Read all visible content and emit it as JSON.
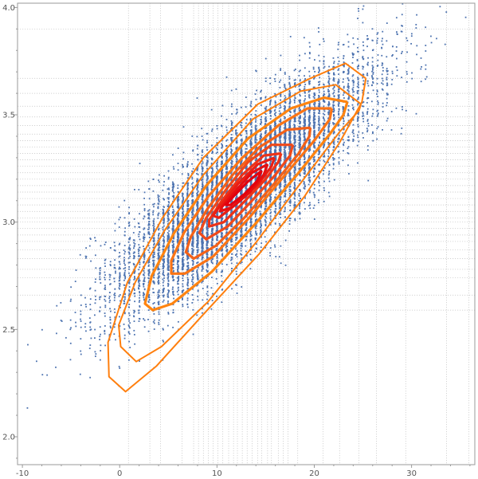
{
  "chart_data": {
    "type": "scatter",
    "title": "",
    "xlabel": "",
    "ylabel": "",
    "xlim": [
      -10.5,
      36.5
    ],
    "ylim": [
      1.87,
      4.02
    ],
    "x_ticks": [
      -10,
      0,
      10,
      20,
      30
    ],
    "y_ticks": [
      2.0,
      2.5,
      3.0,
      3.5,
      4.0
    ],
    "x_tick_labels": [
      "-10",
      "0",
      "10",
      "20",
      "30"
    ],
    "y_tick_labels": [
      "2.0",
      "2.5",
      "3.0",
      "3.5",
      "4.0"
    ],
    "grid": true,
    "x_grid_values": [
      0.9,
      3.1,
      4.2,
      6.4,
      7.6,
      8.1,
      8.6,
      9.1,
      9.6,
      10.1,
      10.6,
      11.2,
      11.7,
      12.1,
      12.6,
      13.1,
      13.6,
      14.2,
      14.6,
      15.2,
      15.6,
      16.3,
      16.8,
      17.3,
      18.3,
      20.9,
      22.6,
      24.6,
      26.4,
      29.4,
      33.6,
      35.9
    ],
    "y_grid_values": [
      2.59,
      2.66,
      2.74,
      2.78,
      2.83,
      2.87,
      2.91,
      2.94,
      2.97,
      3.0,
      3.02,
      3.05,
      3.08,
      3.11,
      3.14,
      3.17,
      3.2,
      3.23,
      3.26,
      3.29,
      3.32,
      3.35,
      3.38,
      3.41,
      3.45,
      3.49,
      3.54,
      3.6,
      3.67,
      3.9
    ],
    "scatter_distribution": {
      "count": 9000,
      "x_mean": 12.5,
      "x_sd": 6.3,
      "y_mean": 3.16,
      "y_sd": 0.27,
      "correlation": 0.84,
      "x_quantization": 0.5,
      "color": "#4d73b0"
    },
    "contours": [
      {
        "color": "#ff7f0e",
        "points": [
          [
            25.3,
            3.67
          ],
          [
            23.2,
            3.74
          ],
          [
            19.6,
            3.67
          ],
          [
            14.2,
            3.55
          ],
          [
            8.6,
            3.3
          ],
          [
            4.4,
            3.02
          ],
          [
            0.8,
            2.72
          ],
          [
            -1.2,
            2.44
          ],
          [
            -1.1,
            2.28
          ],
          [
            0.6,
            2.21
          ],
          [
            3.8,
            2.33
          ],
          [
            8.8,
            2.58
          ],
          [
            14.3,
            2.85
          ],
          [
            19.0,
            3.12
          ],
          [
            22.6,
            3.37
          ],
          [
            24.9,
            3.56
          ],
          [
            25.3,
            3.67
          ]
        ]
      },
      {
        "color": "#ff7f0e",
        "points": [
          [
            24.8,
            3.55
          ],
          [
            22.2,
            3.64
          ],
          [
            18.6,
            3.61
          ],
          [
            13.7,
            3.48
          ],
          [
            8.6,
            3.22
          ],
          [
            4.6,
            2.96
          ],
          [
            1.6,
            2.72
          ],
          [
            -0.1,
            2.52
          ],
          [
            0.1,
            2.42
          ],
          [
            1.7,
            2.35
          ],
          [
            4.3,
            2.42
          ],
          [
            9.1,
            2.63
          ],
          [
            14.1,
            2.91
          ],
          [
            18.9,
            3.2
          ],
          [
            22.6,
            3.42
          ],
          [
            24.6,
            3.52
          ],
          [
            24.8,
            3.55
          ]
        ]
      },
      {
        "color": "#ff8410",
        "points": [
          [
            23.4,
            3.56
          ],
          [
            21.0,
            3.58
          ],
          [
            17.6,
            3.53
          ],
          [
            13.2,
            3.39
          ],
          [
            8.9,
            3.17
          ],
          [
            5.6,
            2.95
          ],
          [
            3.3,
            2.75
          ],
          [
            2.6,
            2.62
          ],
          [
            3.4,
            2.59
          ],
          [
            5.4,
            2.62
          ],
          [
            9.5,
            2.77
          ],
          [
            14.1,
            3.0
          ],
          [
            18.4,
            3.23
          ],
          [
            21.6,
            3.41
          ],
          [
            23.0,
            3.5
          ],
          [
            23.4,
            3.56
          ]
        ]
      },
      {
        "color": "#fb7415",
        "points": [
          [
            21.8,
            3.53
          ],
          [
            19.3,
            3.53
          ],
          [
            16.3,
            3.45
          ],
          [
            12.6,
            3.3
          ],
          [
            9.1,
            3.12
          ],
          [
            6.6,
            2.95
          ],
          [
            5.3,
            2.82
          ],
          [
            5.3,
            2.76
          ],
          [
            6.7,
            2.76
          ],
          [
            9.6,
            2.84
          ],
          [
            13.3,
            3.02
          ],
          [
            17.0,
            3.22
          ],
          [
            20.0,
            3.38
          ],
          [
            21.6,
            3.48
          ],
          [
            21.8,
            3.53
          ]
        ]
      },
      {
        "color": "#f46118",
        "points": [
          [
            19.6,
            3.44
          ],
          [
            17.2,
            3.43
          ],
          [
            14.4,
            3.35
          ],
          [
            11.6,
            3.22
          ],
          [
            9.0,
            3.06
          ],
          [
            7.3,
            2.93
          ],
          [
            6.8,
            2.86
          ],
          [
            7.6,
            2.83
          ],
          [
            9.9,
            2.89
          ],
          [
            12.8,
            3.02
          ],
          [
            15.9,
            3.18
          ],
          [
            18.4,
            3.32
          ],
          [
            19.5,
            3.4
          ],
          [
            19.6,
            3.44
          ]
        ]
      },
      {
        "color": "#f0491a",
        "points": [
          [
            17.8,
            3.36
          ],
          [
            15.6,
            3.36
          ],
          [
            13.2,
            3.28
          ],
          [
            10.9,
            3.15
          ],
          [
            8.9,
            3.02
          ],
          [
            8.2,
            2.95
          ],
          [
            8.9,
            2.92
          ],
          [
            11.1,
            2.98
          ],
          [
            13.6,
            3.1
          ],
          [
            16.0,
            3.22
          ],
          [
            17.5,
            3.31
          ],
          [
            17.8,
            3.36
          ]
        ]
      },
      {
        "color": "#ed3318",
        "points": [
          [
            16.6,
            3.32
          ],
          [
            14.8,
            3.31
          ],
          [
            12.6,
            3.22
          ],
          [
            10.5,
            3.1
          ],
          [
            9.2,
            3.01
          ],
          [
            9.2,
            2.98
          ],
          [
            10.7,
            3.0
          ],
          [
            12.9,
            3.1
          ],
          [
            15.0,
            3.2
          ],
          [
            16.3,
            3.28
          ],
          [
            16.6,
            3.32
          ]
        ]
      },
      {
        "color": "#ea1f14",
        "points": [
          [
            15.9,
            3.3
          ],
          [
            14.2,
            3.27
          ],
          [
            12.2,
            3.18
          ],
          [
            10.4,
            3.08
          ],
          [
            9.6,
            3.03
          ],
          [
            10.2,
            3.02
          ],
          [
            12.1,
            3.09
          ],
          [
            14.3,
            3.18
          ],
          [
            15.6,
            3.26
          ],
          [
            15.9,
            3.3
          ]
        ]
      },
      {
        "color": "#e60f10",
        "points": [
          [
            15.2,
            3.27
          ],
          [
            13.6,
            3.23
          ],
          [
            11.8,
            3.14
          ],
          [
            10.5,
            3.07
          ],
          [
            10.3,
            3.05
          ],
          [
            11.6,
            3.07
          ],
          [
            13.4,
            3.14
          ],
          [
            14.8,
            3.22
          ],
          [
            15.2,
            3.27
          ]
        ]
      },
      {
        "color": "#e2000e",
        "points": [
          [
            14.6,
            3.24
          ],
          [
            13.2,
            3.19
          ],
          [
            11.7,
            3.12
          ],
          [
            10.9,
            3.08
          ],
          [
            11.4,
            3.08
          ],
          [
            12.8,
            3.13
          ],
          [
            14.1,
            3.19
          ],
          [
            14.6,
            3.24
          ]
        ]
      }
    ]
  }
}
